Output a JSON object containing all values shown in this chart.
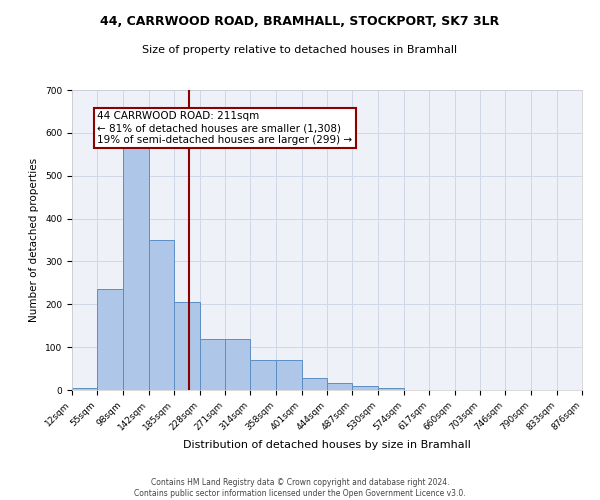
{
  "title_line1": "44, CARRWOOD ROAD, BRAMHALL, STOCKPORT, SK7 3LR",
  "title_line2": "Size of property relative to detached houses in Bramhall",
  "xlabel": "Distribution of detached houses by size in Bramhall",
  "ylabel": "Number of detached properties",
  "footnote": "Contains HM Land Registry data © Crown copyright and database right 2024.\nContains public sector information licensed under the Open Government Licence v3.0.",
  "bin_edges": [
    12,
    55,
    98,
    142,
    185,
    228,
    271,
    314,
    358,
    401,
    444,
    487,
    530,
    574,
    617,
    660,
    703,
    746,
    790,
    833,
    876
  ],
  "bar_heights": [
    5,
    235,
    590,
    350,
    205,
    118,
    118,
    70,
    70,
    28,
    17,
    10,
    5,
    0,
    0,
    0,
    0,
    0,
    0,
    0
  ],
  "bar_color": "#aec6e8",
  "bar_edge_color": "#5b8ec4",
  "vline_x": 211,
  "vline_color": "#8b0000",
  "annotation_line1": "44 CARRWOOD ROAD: 211sqm",
  "annotation_line2": "← 81% of detached houses are smaller (1,308)",
  "annotation_line3": "19% of semi-detached houses are larger (299) →",
  "annotation_box_edge_color": "#8b0000",
  "ylim": [
    0,
    700
  ],
  "yticks": [
    0,
    100,
    200,
    300,
    400,
    500,
    600,
    700
  ],
  "grid_color": "#d0d8e8",
  "background_color": "#eef2f8",
  "title1_fontsize": 9,
  "title2_fontsize": 8,
  "ylabel_fontsize": 7.5,
  "xlabel_fontsize": 8,
  "footnote_fontsize": 5.5,
  "tick_fontsize": 6.5,
  "annotation_fontsize": 7.5
}
